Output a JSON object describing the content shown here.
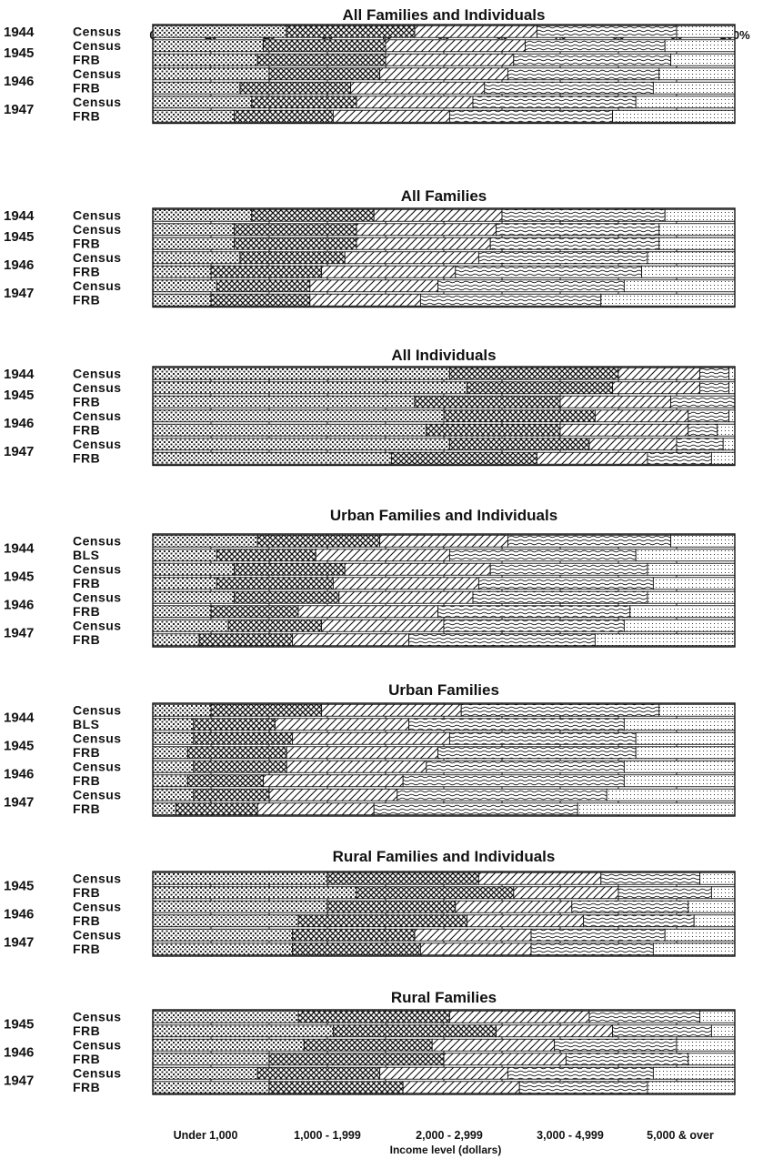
{
  "chart_data": {
    "type": "bar",
    "orientation": "horizontal-stacked-percent",
    "x_ticks": [
      "0",
      "10",
      "20",
      "30",
      "40",
      "50",
      "60",
      "70",
      "80",
      "90",
      "100%"
    ],
    "xlim": [
      0,
      100
    ],
    "xlabel": "Income level (dollars)",
    "legend": [
      "Under 1,000",
      "1,000 - 1,999",
      "2,000 - 2,999",
      "3,000 - 4,999",
      "5,000 & over"
    ],
    "legend_placement": "bottom",
    "grid": true,
    "panels": [
      {
        "title": "All Families and Individuals",
        "groups": [
          {
            "year": "1944",
            "rows": [
              {
                "source": "Census",
                "values": [
                  23,
                  22,
                  21,
                  24,
                  10
                ]
              }
            ]
          },
          {
            "year": "1945",
            "rows": [
              {
                "source": "Census",
                "values": [
                  19,
                  21,
                  24,
                  24,
                  12
                ]
              },
              {
                "source": "FRB",
                "values": [
                  18,
                  22,
                  22,
                  27,
                  11
                ]
              }
            ]
          },
          {
            "year": "1946",
            "rows": [
              {
                "source": "Census",
                "values": [
                  20,
                  19,
                  22,
                  26,
                  13
                ]
              },
              {
                "source": "FRB",
                "values": [
                  15,
                  19,
                  23,
                  29,
                  14
                ]
              }
            ]
          },
          {
            "year": "1947",
            "rows": [
              {
                "source": "Census",
                "values": [
                  17,
                  18,
                  20,
                  28,
                  17
                ]
              },
              {
                "source": "FRB",
                "values": [
                  14,
                  17,
                  20,
                  28,
                  21
                ]
              }
            ]
          }
        ]
      },
      {
        "title": "All Families",
        "groups": [
          {
            "year": "1944",
            "rows": [
              {
                "source": "Census",
                "values": [
                  17,
                  21,
                  22,
                  28,
                  12
                ]
              }
            ]
          },
          {
            "year": "1945",
            "rows": [
              {
                "source": "Census",
                "values": [
                  14,
                  21,
                  24,
                  28,
                  13
                ]
              },
              {
                "source": "FRB",
                "values": [
                  14,
                  21,
                  23,
                  29,
                  13
                ]
              }
            ]
          },
          {
            "year": "1946",
            "rows": [
              {
                "source": "Census",
                "values": [
                  15,
                  18,
                  23,
                  29,
                  15
                ]
              },
              {
                "source": "FRB",
                "values": [
                  10,
                  19,
                  23,
                  32,
                  16
                ]
              }
            ]
          },
          {
            "year": "1947",
            "rows": [
              {
                "source": "Census",
                "values": [
                  11,
                  16,
                  22,
                  32,
                  19
                ]
              },
              {
                "source": "FRB",
                "values": [
                  10,
                  17,
                  19,
                  31,
                  23
                ]
              }
            ]
          }
        ]
      },
      {
        "title": "All Individuals",
        "groups": [
          {
            "year": "1944",
            "rows": [
              {
                "source": "Census",
                "values": [
                  51,
                  29,
                  14,
                  5,
                  1
                ]
              }
            ]
          },
          {
            "year": "1945",
            "rows": [
              {
                "source": "Census",
                "values": [
                  54,
                  25,
                  15,
                  5,
                  1
                ]
              },
              {
                "source": "FRB",
                "values": [
                  45,
                  25,
                  19,
                  11,
                  0
                ]
              }
            ]
          },
          {
            "year": "1946",
            "rows": [
              {
                "source": "Census",
                "values": [
                  50,
                  26,
                  16,
                  7,
                  1
                ]
              },
              {
                "source": "FRB",
                "values": [
                  47,
                  23,
                  22,
                  5,
                  3
                ]
              }
            ]
          },
          {
            "year": "1947",
            "rows": [
              {
                "source": "Census",
                "values": [
                  51,
                  24,
                  15,
                  8,
                  2
                ]
              },
              {
                "source": "FRB",
                "values": [
                  41,
                  25,
                  19,
                  11,
                  4
                ]
              }
            ]
          }
        ]
      },
      {
        "title": "Urban Families and Individuals",
        "groups": [
          {
            "year": "1944",
            "rows": [
              {
                "source": "Census",
                "values": [
                  18,
                  21,
                  22,
                  28,
                  11
                ]
              },
              {
                "source": "BLS",
                "values": [
                  11,
                  17,
                  23,
                  32,
                  17
                ]
              }
            ]
          },
          {
            "year": "1945",
            "rows": [
              {
                "source": "Census",
                "values": [
                  14,
                  19,
                  25,
                  27,
                  15
                ]
              },
              {
                "source": "FRB",
                "values": [
                  11,
                  20,
                  25,
                  30,
                  14
                ]
              }
            ]
          },
          {
            "year": "1946",
            "rows": [
              {
                "source": "Census",
                "values": [
                  14,
                  18,
                  23,
                  30,
                  15
                ]
              },
              {
                "source": "FRB",
                "values": [
                  10,
                  15,
                  24,
                  33,
                  18
                ]
              }
            ]
          },
          {
            "year": "1947",
            "rows": [
              {
                "source": "Census",
                "values": [
                  13,
                  16,
                  21,
                  31,
                  19
                ]
              },
              {
                "source": "FRB",
                "values": [
                  8,
                  16,
                  20,
                  32,
                  24
                ]
              }
            ]
          }
        ]
      },
      {
        "title": "Urban Families",
        "groups": [
          {
            "year": "1944",
            "rows": [
              {
                "source": "Census",
                "values": [
                  10,
                  19,
                  24,
                  34,
                  13
                ]
              },
              {
                "source": "BLS",
                "values": [
                  7,
                  14,
                  23,
                  37,
                  19
                ]
              }
            ]
          },
          {
            "year": "1945",
            "rows": [
              {
                "source": "Census",
                "values": [
                  7,
                  17,
                  27,
                  32,
                  17
                ]
              },
              {
                "source": "FRB",
                "values": [
                  6,
                  17,
                  26,
                  34,
                  17
                ]
              }
            ]
          },
          {
            "year": "1946",
            "rows": [
              {
                "source": "Census",
                "values": [
                  7,
                  16,
                  24,
                  34,
                  19
                ]
              },
              {
                "source": "FRB",
                "values": [
                  6,
                  13,
                  24,
                  38,
                  19
                ]
              }
            ]
          },
          {
            "year": "1947",
            "rows": [
              {
                "source": "Census",
                "values": [
                  7,
                  13,
                  22,
                  36,
                  22
                ]
              },
              {
                "source": "FRB",
                "values": [
                  4,
                  14,
                  20,
                  35,
                  27
                ]
              }
            ]
          }
        ]
      },
      {
        "title": "Rural Families and Individuals",
        "groups": [
          {
            "year": "1945",
            "rows": [
              {
                "source": "Census",
                "values": [
                  30,
                  26,
                  21,
                  17,
                  6
                ]
              },
              {
                "source": "FRB",
                "values": [
                  35,
                  27,
                  18,
                  16,
                  4
                ]
              }
            ]
          },
          {
            "year": "1946",
            "rows": [
              {
                "source": "Census",
                "values": [
                  30,
                  22,
                  20,
                  20,
                  8
                ]
              },
              {
                "source": "FRB",
                "values": [
                  25,
                  29,
                  20,
                  19,
                  7
                ]
              }
            ]
          },
          {
            "year": "1947",
            "rows": [
              {
                "source": "Census",
                "values": [
                  24,
                  21,
                  20,
                  23,
                  12
                ]
              },
              {
                "source": "FRB",
                "values": [
                  24,
                  22,
                  19,
                  21,
                  14
                ]
              }
            ]
          }
        ]
      },
      {
        "title": "Rural Families",
        "groups": [
          {
            "year": "1945",
            "rows": [
              {
                "source": "Census",
                "values": [
                  25,
                  26,
                  24,
                  19,
                  6
                ]
              },
              {
                "source": "FRB",
                "values": [
                  31,
                  28,
                  20,
                  17,
                  4
                ]
              }
            ]
          },
          {
            "year": "1946",
            "rows": [
              {
                "source": "Census",
                "values": [
                  26,
                  22,
                  21,
                  21,
                  10
                ]
              },
              {
                "source": "FRB",
                "values": [
                  20,
                  30,
                  21,
                  21,
                  8
                ]
              }
            ]
          },
          {
            "year": "1947",
            "rows": [
              {
                "source": "Census",
                "values": [
                  18,
                  21,
                  22,
                  25,
                  14
                ]
              },
              {
                "source": "FRB",
                "values": [
                  20,
                  23,
                  20,
                  22,
                  15
                ]
              }
            ]
          }
        ]
      }
    ]
  }
}
